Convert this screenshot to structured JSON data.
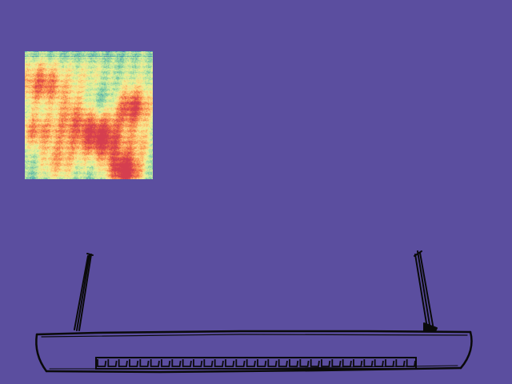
{
  "scene": {
    "background_color": "#5b4e9f",
    "heatmap": {
      "colormap": [
        "#5e4fa2",
        "#3288bd",
        "#66c2a5",
        "#abdda4",
        "#e6f598",
        "#fee08b",
        "#fdae61",
        "#f46d43",
        "#d53e4f"
      ]
    },
    "sketch": {
      "stroke_color": "#0a0a0a",
      "port_count": 30
    }
  }
}
